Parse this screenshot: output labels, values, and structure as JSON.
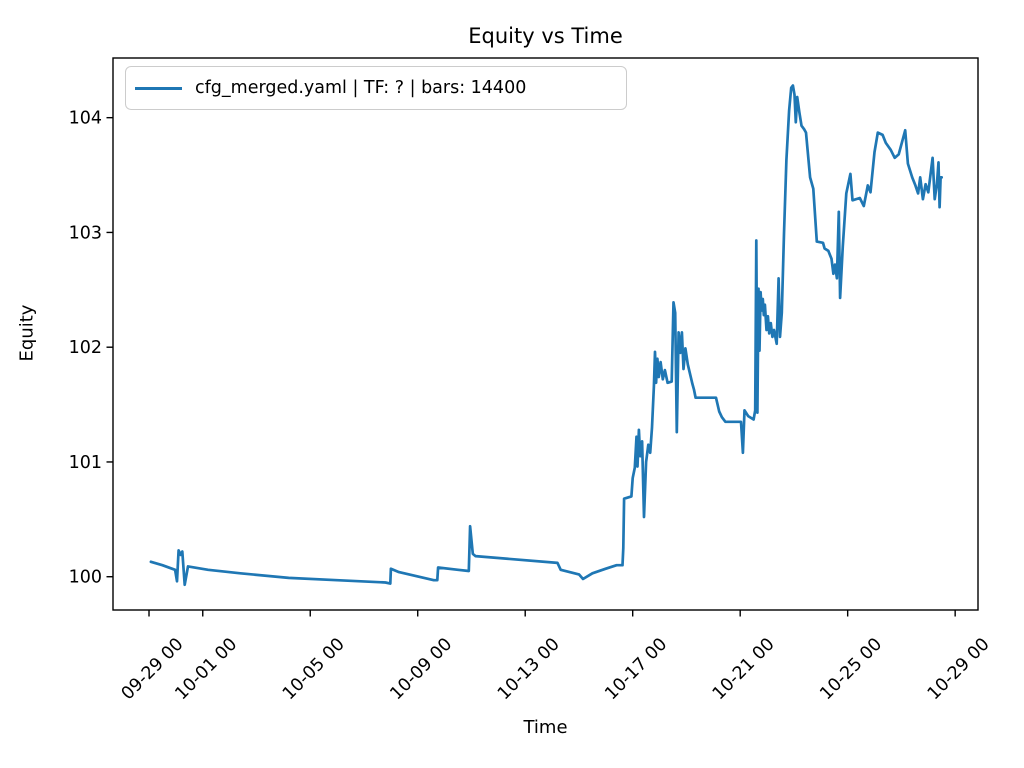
{
  "figure": {
    "background": "#ffffff",
    "spine_color": "#000000"
  },
  "chart_data": {
    "type": "line",
    "title": "Equity vs Time",
    "xlabel": "Time",
    "ylabel": "Equity",
    "grid": false,
    "legend_position": "upper left",
    "x_axis": {
      "unit": "days since 09-29 00:00",
      "lim": [
        -1.34,
        30.85
      ],
      "ticks": [
        {
          "pos": 0,
          "label": "09-29 00"
        },
        {
          "pos": 2,
          "label": "10-01 00"
        },
        {
          "pos": 6,
          "label": "10-05 00"
        },
        {
          "pos": 10,
          "label": "10-09 00"
        },
        {
          "pos": 14,
          "label": "10-13 00"
        },
        {
          "pos": 18,
          "label": "10-17 00"
        },
        {
          "pos": 22,
          "label": "10-21 00"
        },
        {
          "pos": 26,
          "label": "10-25 00"
        },
        {
          "pos": 30,
          "label": "10-29 00"
        }
      ]
    },
    "y_axis": {
      "lim": [
        99.71,
        104.52
      ],
      "ticks": [
        {
          "pos": 100,
          "label": "100"
        },
        {
          "pos": 101,
          "label": "101"
        },
        {
          "pos": 102,
          "label": "102"
        },
        {
          "pos": 103,
          "label": "103"
        },
        {
          "pos": 104,
          "label": "104"
        }
      ]
    },
    "series": [
      {
        "name": "cfg_merged.yaml | TF: ? | bars: 14400",
        "color": "#1f77b4",
        "points": [
          [
            0.07,
            100.13
          ],
          [
            0.5,
            100.1
          ],
          [
            0.97,
            100.06
          ],
          [
            1.04,
            99.96
          ],
          [
            1.1,
            100.23
          ],
          [
            1.18,
            100.19
          ],
          [
            1.24,
            100.22
          ],
          [
            1.33,
            99.93
          ],
          [
            1.45,
            100.09
          ],
          [
            2.2,
            100.06
          ],
          [
            3.4,
            100.03
          ],
          [
            5.2,
            99.99
          ],
          [
            7.0,
            99.97
          ],
          [
            8.8,
            99.95
          ],
          [
            8.98,
            99.94
          ],
          [
            9.0,
            100.07
          ],
          [
            9.3,
            100.04
          ],
          [
            10.6,
            99.97
          ],
          [
            10.73,
            99.97
          ],
          [
            10.76,
            100.08
          ],
          [
            11.5,
            100.06
          ],
          [
            11.9,
            100.05
          ],
          [
            11.95,
            100.44
          ],
          [
            12.05,
            100.2
          ],
          [
            12.15,
            100.18
          ],
          [
            15.2,
            100.12
          ],
          [
            15.32,
            100.06
          ],
          [
            16.0,
            100.02
          ],
          [
            16.15,
            99.98
          ],
          [
            16.5,
            100.03
          ],
          [
            17.0,
            100.07
          ],
          [
            17.4,
            100.1
          ],
          [
            17.62,
            100.1
          ],
          [
            17.65,
            100.25
          ],
          [
            17.68,
            100.68
          ],
          [
            17.95,
            100.7
          ],
          [
            18.0,
            100.86
          ],
          [
            18.08,
            100.95
          ],
          [
            18.14,
            101.22
          ],
          [
            18.18,
            100.96
          ],
          [
            18.23,
            101.28
          ],
          [
            18.28,
            101.05
          ],
          [
            18.35,
            101.18
          ],
          [
            18.42,
            100.52
          ],
          [
            18.5,
            101.0
          ],
          [
            18.58,
            101.15
          ],
          [
            18.65,
            101.08
          ],
          [
            18.72,
            101.3
          ],
          [
            18.79,
            101.66
          ],
          [
            18.83,
            101.96
          ],
          [
            18.87,
            101.69
          ],
          [
            18.92,
            101.9
          ],
          [
            18.97,
            101.74
          ],
          [
            19.04,
            101.87
          ],
          [
            19.12,
            101.72
          ],
          [
            19.2,
            101.8
          ],
          [
            19.3,
            101.69
          ],
          [
            19.45,
            101.7
          ],
          [
            19.52,
            102.39
          ],
          [
            19.58,
            102.3
          ],
          [
            19.64,
            101.26
          ],
          [
            19.71,
            102.13
          ],
          [
            19.77,
            101.95
          ],
          [
            19.83,
            102.13
          ],
          [
            19.89,
            101.81
          ],
          [
            19.96,
            101.99
          ],
          [
            20.05,
            101.85
          ],
          [
            20.22,
            101.68
          ],
          [
            20.28,
            101.63
          ],
          [
            20.34,
            101.56
          ],
          [
            21.1,
            101.56
          ],
          [
            21.22,
            101.44
          ],
          [
            21.32,
            101.39
          ],
          [
            21.45,
            101.35
          ],
          [
            22.03,
            101.35
          ],
          [
            22.1,
            101.08
          ],
          [
            22.16,
            101.45
          ],
          [
            22.3,
            101.4
          ],
          [
            22.5,
            101.37
          ],
          [
            22.56,
            101.45
          ],
          [
            22.6,
            102.93
          ],
          [
            22.64,
            101.43
          ],
          [
            22.68,
            102.51
          ],
          [
            22.72,
            101.97
          ],
          [
            22.76,
            102.48
          ],
          [
            22.8,
            102.32
          ],
          [
            22.84,
            102.42
          ],
          [
            22.88,
            102.28
          ],
          [
            22.92,
            102.37
          ],
          [
            22.98,
            102.15
          ],
          [
            23.03,
            102.27
          ],
          [
            23.08,
            102.12
          ],
          [
            23.14,
            102.21
          ],
          [
            23.2,
            102.09
          ],
          [
            23.26,
            102.15
          ],
          [
            23.36,
            102.03
          ],
          [
            23.43,
            102.6
          ],
          [
            23.48,
            102.09
          ],
          [
            23.55,
            102.3
          ],
          [
            23.63,
            102.99
          ],
          [
            23.72,
            103.63
          ],
          [
            23.82,
            104.06
          ],
          [
            23.9,
            104.26
          ],
          [
            23.96,
            104.28
          ],
          [
            24.02,
            104.2
          ],
          [
            24.07,
            103.96
          ],
          [
            24.12,
            104.18
          ],
          [
            24.2,
            104.05
          ],
          [
            24.28,
            103.93
          ],
          [
            24.38,
            103.9
          ],
          [
            24.45,
            103.87
          ],
          [
            24.6,
            103.48
          ],
          [
            24.72,
            103.38
          ],
          [
            24.85,
            102.92
          ],
          [
            25.08,
            102.91
          ],
          [
            25.14,
            102.86
          ],
          [
            25.28,
            102.84
          ],
          [
            25.4,
            102.77
          ],
          [
            25.47,
            102.64
          ],
          [
            25.53,
            102.72
          ],
          [
            25.6,
            102.6
          ],
          [
            25.67,
            103.18
          ],
          [
            25.72,
            102.43
          ],
          [
            25.82,
            102.88
          ],
          [
            25.95,
            103.34
          ],
          [
            26.1,
            103.51
          ],
          [
            26.18,
            103.28
          ],
          [
            26.45,
            103.3
          ],
          [
            26.6,
            103.23
          ],
          [
            26.75,
            103.41
          ],
          [
            26.85,
            103.35
          ],
          [
            27.0,
            103.7
          ],
          [
            27.12,
            103.87
          ],
          [
            27.3,
            103.85
          ],
          [
            27.42,
            103.78
          ],
          [
            27.6,
            103.72
          ],
          [
            27.75,
            103.65
          ],
          [
            27.9,
            103.68
          ],
          [
            28.14,
            103.89
          ],
          [
            28.24,
            103.6
          ],
          [
            28.4,
            103.48
          ],
          [
            28.52,
            103.41
          ],
          [
            28.62,
            103.34
          ],
          [
            28.7,
            103.48
          ],
          [
            28.8,
            103.29
          ],
          [
            28.9,
            103.42
          ],
          [
            29.0,
            103.35
          ],
          [
            29.16,
            103.65
          ],
          [
            29.24,
            103.29
          ],
          [
            29.32,
            103.42
          ],
          [
            29.38,
            103.61
          ],
          [
            29.42,
            103.22
          ],
          [
            29.46,
            103.48
          ],
          [
            29.5,
            103.48
          ]
        ]
      }
    ]
  }
}
